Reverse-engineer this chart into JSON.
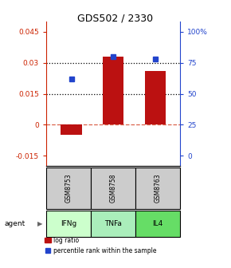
{
  "title": "GDS502 / 2330",
  "categories": [
    "IFNg",
    "TNFa",
    "IL4"
  ],
  "gsm_labels": [
    "GSM8753",
    "GSM8758",
    "GSM8763"
  ],
  "log_ratios": [
    -0.005,
    0.033,
    0.026
  ],
  "percentile_ranks": [
    62,
    80,
    78
  ],
  "bar_color": "#BB1111",
  "dot_color": "#2244CC",
  "left_ylim": [
    -0.02,
    0.05
  ],
  "left_yticks": [
    -0.015,
    0,
    0.015,
    0.03,
    0.045
  ],
  "right_ylim": [
    -0.02,
    0.05
  ],
  "right_yticks": [
    -0.015,
    0,
    0.015,
    0.03,
    0.045
  ],
  "right_yticklabels": [
    "0",
    "25",
    "50",
    "75",
    "100%"
  ],
  "dotted_lines": [
    0.015,
    0.03
  ],
  "zero_line": 0,
  "agent_colors": [
    "#CCFFCC",
    "#AAEEBB",
    "#66DD66"
  ],
  "gsm_box_color": "#CCCCCC",
  "bar_width": 0.5,
  "legend_red_label": "log ratio",
  "legend_blue_label": "percentile rank within the sample",
  "agent_label": "agent",
  "percentile_to_log_scale_min": -0.015,
  "percentile_to_log_scale_max": 0.045
}
